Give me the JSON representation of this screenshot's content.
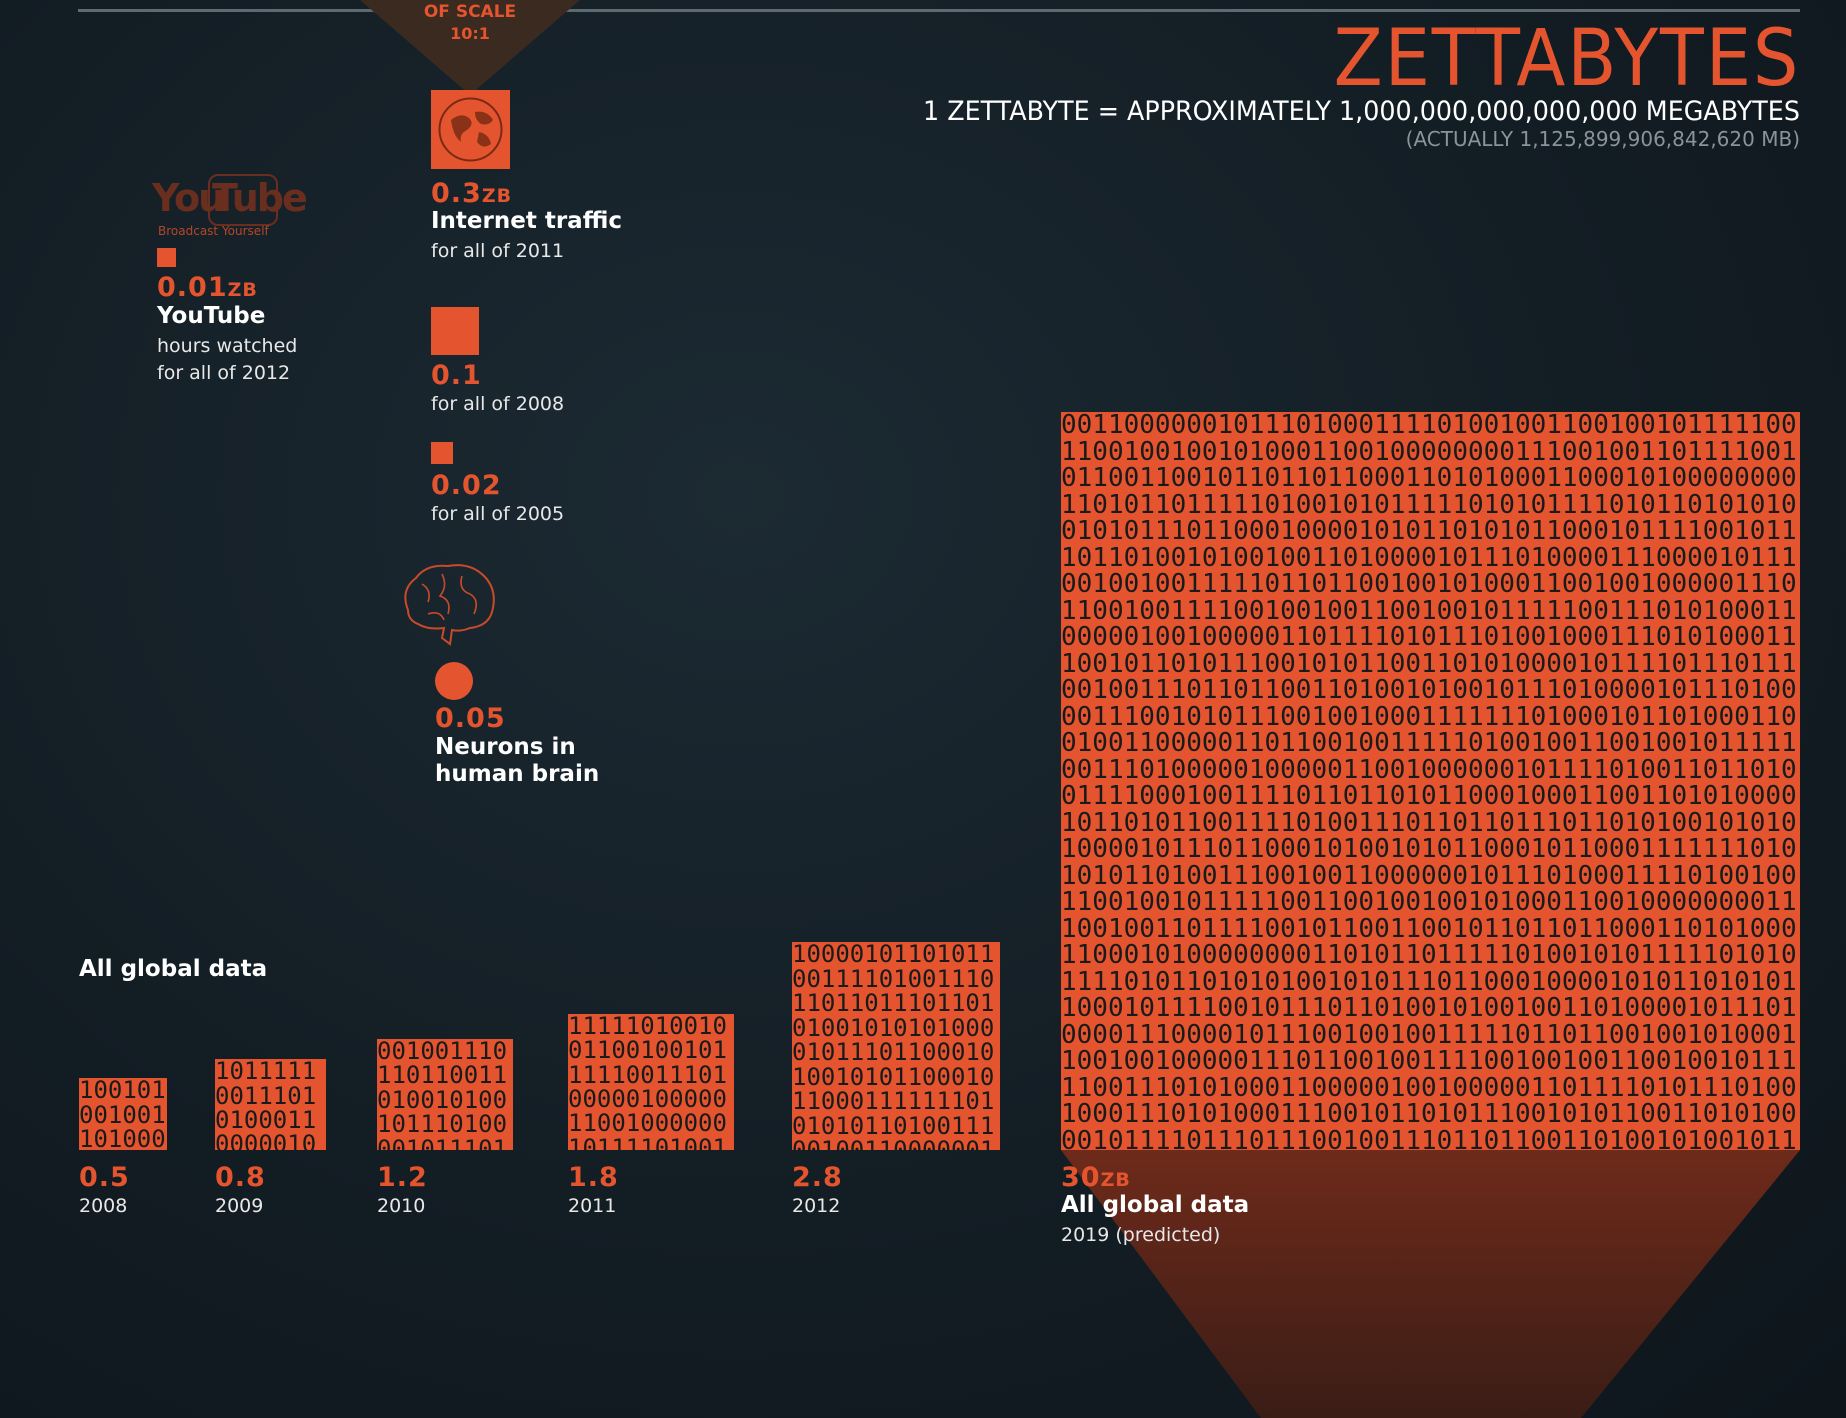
{
  "header": {
    "scale_badge_line1": "OF SCALE",
    "scale_badge_line2": "10:1",
    "title": "ZETTABYTES",
    "subtitle": "1 ZETTABYTE = APPROXIMATELY 1,000,000,000,000,000 MEGABYTES",
    "note": "(ACTUALLY 1,125,899,906,842,620 MB)"
  },
  "youtube": {
    "logo_left": "You",
    "logo_right": "Tube",
    "logo_tagline": "Broadcast Yourself",
    "value": "0.01",
    "unit": "ZB",
    "label": "YouTube",
    "desc1": "hours watched",
    "desc2": "for all of 2012"
  },
  "internet": {
    "value_2011": "0.3",
    "unit": "ZB",
    "label": "Internet traffic",
    "desc_2011": "for all of 2011",
    "value_2008": "0.1",
    "desc_2008": "for all of 2008",
    "value_2005": "0.02",
    "desc_2005": "for all of 2005"
  },
  "brain": {
    "value": "0.05",
    "label1": "Neurons in",
    "label2": "human brain"
  },
  "global": {
    "heading": "All global data",
    "final_unit": "ZB",
    "final_label": "All global data",
    "final_desc": "2019 (predicted)"
  },
  "chart_data": {
    "type": "bar",
    "title": "ZETTABYTES",
    "unit": "ZB",
    "categories": [
      "2008",
      "2009",
      "2010",
      "2011",
      "2012",
      "2019 (predicted)"
    ],
    "series": [
      {
        "name": "All global data",
        "values": [
          0.5,
          0.8,
          1.2,
          1.8,
          2.8,
          30
        ]
      }
    ],
    "value_labels": [
      "0.5",
      "0.8",
      "1.2",
      "1.8",
      "2.8",
      "30"
    ],
    "comparisons": [
      {
        "label": "YouTube hours watched for all of 2012",
        "value": 0.01
      },
      {
        "label": "Internet traffic for all of 2011",
        "value": 0.3
      },
      {
        "label": "Internet traffic for all of 2008",
        "value": 0.1
      },
      {
        "label": "Internet traffic for all of 2005",
        "value": 0.02
      },
      {
        "label": "Neurons in human brain",
        "value": 0.05
      }
    ]
  },
  "colors": {
    "accent": "#e4552f",
    "background": "#131d24"
  }
}
